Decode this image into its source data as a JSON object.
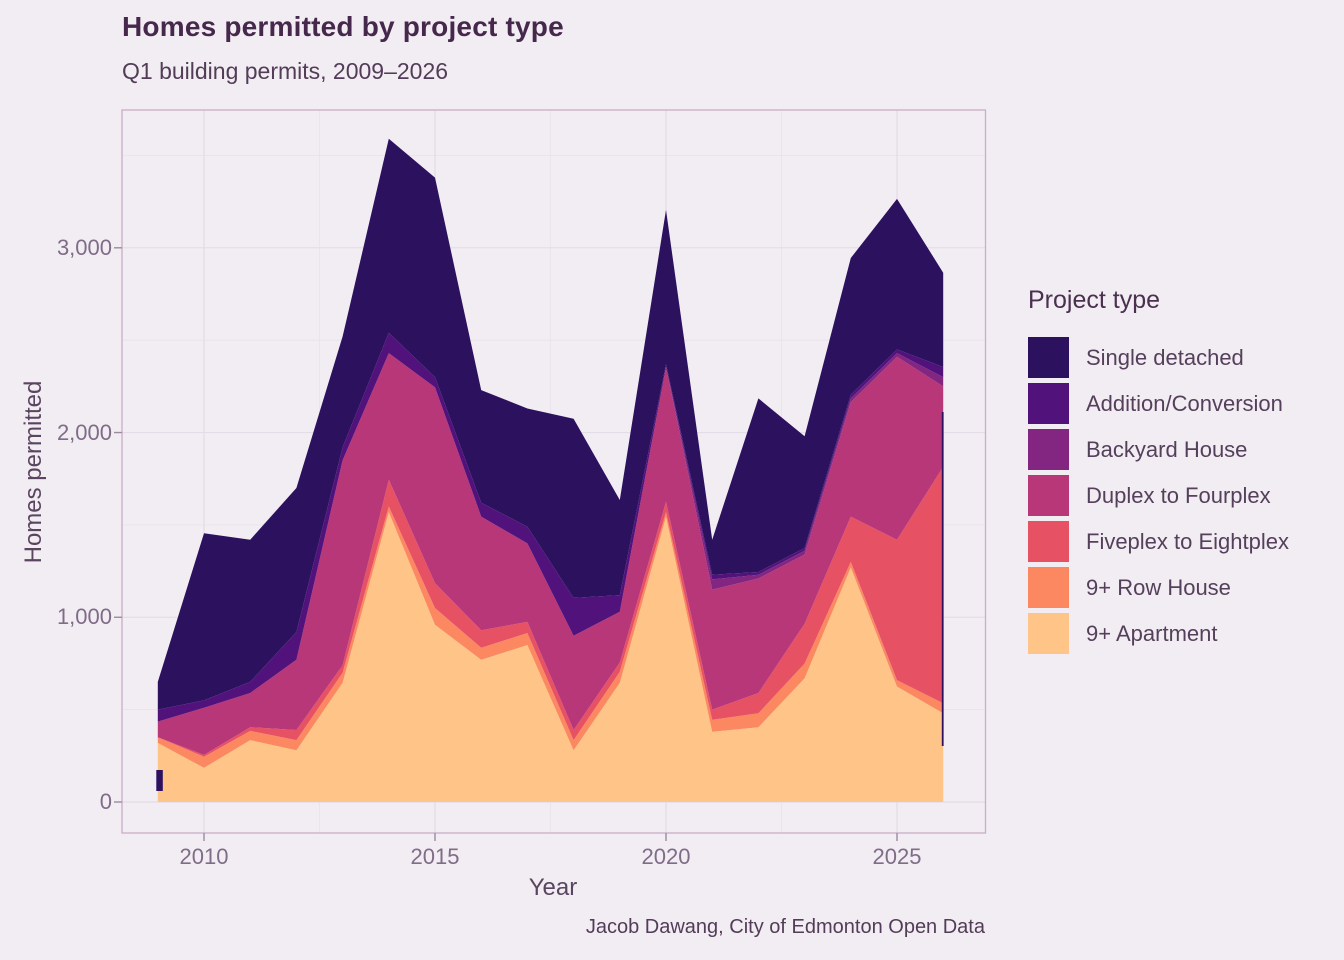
{
  "title": "Homes permitted by project type",
  "subtitle": "Q1 building permits, 2009–2026",
  "caption": "Jacob Dawang, City of Edmonton Open Data",
  "legend": {
    "title": "Project type"
  },
  "x_axis": {
    "label": "Year",
    "ticks": [
      {
        "value": 2010,
        "label": "2010"
      },
      {
        "value": 2015,
        "label": "2015"
      },
      {
        "value": 2020,
        "label": "2020"
      },
      {
        "value": 2025,
        "label": "2025"
      }
    ],
    "minor_gridlines": [
      2012.5,
      2017.5,
      2022.5
    ],
    "range": [
      2009,
      2026
    ]
  },
  "y_axis": {
    "label": "Homes permitted",
    "ticks": [
      {
        "value": 0,
        "label": "0"
      },
      {
        "value": 1000,
        "label": "1,000"
      },
      {
        "value": 2000,
        "label": "2,000"
      },
      {
        "value": 3000,
        "label": "3,000"
      }
    ],
    "minor_gridlines": [
      500,
      1500,
      2500,
      3500
    ],
    "range": [
      0,
      3590
    ]
  },
  "colors": {
    "background": "#f2edf3",
    "panel_border": "#c8aec8",
    "grid_major": "#e4dce6",
    "grid_minor": "#e9e2ea",
    "tick_mark": "#9b8aa0",
    "title_text": "#46284c",
    "muted_text": "#7f6c87",
    "axis_text": "#5a4560"
  },
  "chart_data": {
    "type": "area",
    "stacked": true,
    "title": "Homes permitted by project type",
    "subtitle": "Q1 building permits, 2009–2026",
    "xlabel": "Year",
    "ylabel": "Homes permitted",
    "legend_position": "right",
    "grid": true,
    "xlim": [
      2009,
      2026
    ],
    "ylim": [
      0,
      3700
    ],
    "x": [
      2009,
      2010,
      2011,
      2012,
      2013,
      2014,
      2015,
      2016,
      2017,
      2018,
      2019,
      2020,
      2021,
      2022,
      2023,
      2024,
      2025,
      2026
    ],
    "stack_order_note": "series listed bottom-to-top of the stack; legend shows reverse order",
    "series": [
      {
        "name": "9+ Apartment",
        "color": "#fec488",
        "values": [
          320,
          185,
          335,
          280,
          645,
          1570,
          960,
          770,
          850,
          280,
          645,
          1545,
          380,
          405,
          670,
          1270,
          625,
          480
        ]
      },
      {
        "name": "9+ Row House",
        "color": "#fb8861",
        "values": [
          30,
          60,
          50,
          55,
          55,
          30,
          90,
          65,
          65,
          55,
          60,
          25,
          65,
          75,
          80,
          30,
          35,
          55
        ]
      },
      {
        "name": "Fiveplex to Eightplex",
        "color": "#e65164",
        "values": [
          0,
          10,
          20,
          55,
          40,
          145,
          135,
          95,
          60,
          55,
          50,
          55,
          55,
          110,
          215,
          245,
          760,
          1280
        ]
      },
      {
        "name": "Duplex to Fourplex",
        "color": "#b73779",
        "values": [
          85,
          255,
          185,
          380,
          1110,
          685,
          1060,
          615,
          425,
          510,
          275,
          730,
          650,
          620,
          375,
          620,
          990,
          435
        ]
      },
      {
        "name": "Backyard House",
        "color": "#832681",
        "values": [
          0,
          0,
          0,
          0,
          0,
          0,
          0,
          0,
          0,
          0,
          0,
          0,
          55,
          20,
          20,
          20,
          20,
          50
        ]
      },
      {
        "name": "Addition/Conversion",
        "color": "#51127c",
        "values": [
          65,
          40,
          60,
          150,
          70,
          110,
          55,
          75,
          90,
          205,
          90,
          15,
          25,
          15,
          15,
          20,
          20,
          55
        ]
      },
      {
        "name": "Single detached",
        "color": "#2c115f",
        "values": [
          150,
          905,
          770,
          780,
          600,
          1050,
          1080,
          610,
          640,
          970,
          515,
          835,
          190,
          940,
          605,
          740,
          815,
          510
        ]
      }
    ]
  }
}
